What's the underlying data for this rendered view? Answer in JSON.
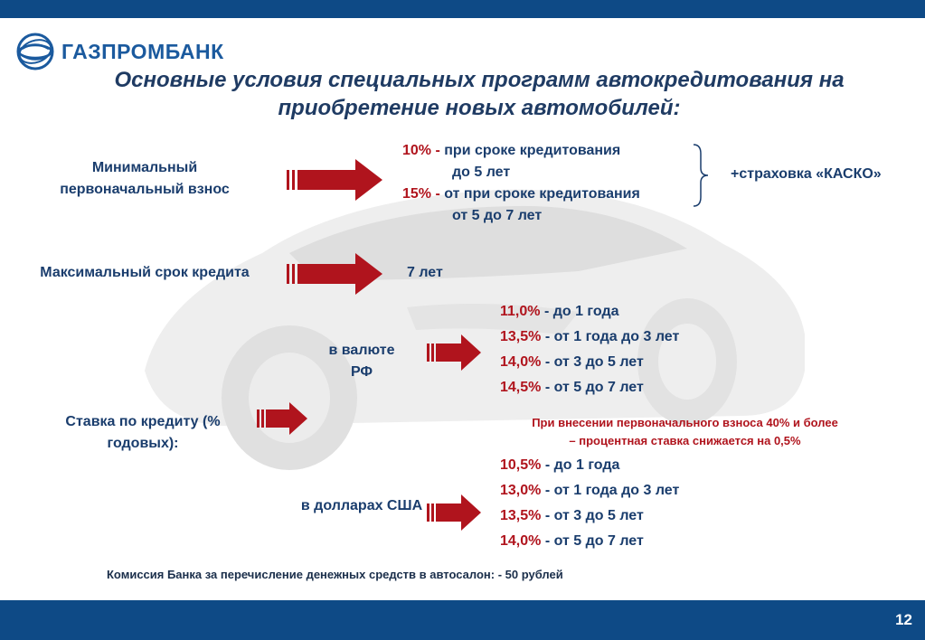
{
  "brand": {
    "name": "ГАЗПРОМБАНК",
    "color": "#1b5a9e"
  },
  "title": "Основные условия специальных программ автокредитования на приобретение новых автомобилей:",
  "min_payment": {
    "label": "Минимальный первоначальный взнос",
    "line1_pct": "10% -",
    "line1_text": "при сроке кредитования",
    "line2": "до 5 лет",
    "line3_pct": "15% -",
    "line3_text": "от при сроке кредитования",
    "line4": "от 5 до 7 лет",
    "insurance": "+страховка «КАСКО»"
  },
  "max_term": {
    "label": "Максимальный срок кредита",
    "value": "7 лет"
  },
  "rate": {
    "label": "Ставка по кредиту (% годовых):",
    "rub": {
      "label": "в валюте РФ",
      "rows": [
        {
          "pct": "11,0%",
          "text": "- до 1 года"
        },
        {
          "pct": "13,5%",
          "text": "- от 1 года до 3 лет"
        },
        {
          "pct": "14,0%",
          "text": "- от 3 до 5 лет"
        },
        {
          "pct": "14,5%",
          "text": "- от 5 до 7 лет"
        }
      ]
    },
    "note_line1": "При внесении первоначального взноса 40% и более",
    "note_line2": "– процентная ставка снижается на 0,5%",
    "usd": {
      "label": "в долларах США",
      "rows": [
        {
          "pct": "10,5%",
          "text": "- до 1 года"
        },
        {
          "pct": "13,0%",
          "text": "- от 1 года до 3 лет"
        },
        {
          "pct": "13,5%",
          "text": "- от 3 до 5 лет"
        },
        {
          "pct": "14,0%",
          "text": "- от 5 до 7 лет"
        }
      ]
    }
  },
  "footer": "Комиссия Банка за перечисление денежных средств в автосалон: - 50 рублей",
  "page_number": "12",
  "colors": {
    "bar": "#0e4a86",
    "arrow": "#b0141d",
    "text": "#1a3d6d"
  }
}
